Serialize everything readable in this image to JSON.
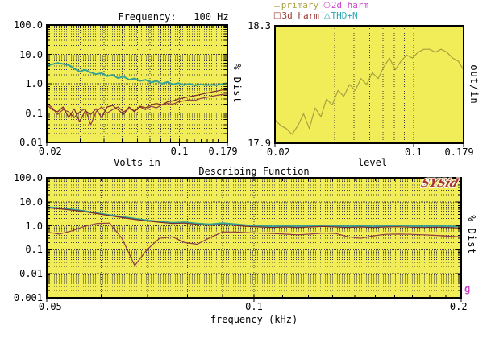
{
  "colors": {
    "plot_bg": "#f1ed58",
    "grid": "#3d3d3d",
    "frame": "#000000",
    "text": "#000000",
    "logo": "#a83232",
    "g_label": "#cc44cc"
  },
  "legend": {
    "items": [
      {
        "marker": "⊥",
        "label": "primary",
        "color": "#a8a040"
      },
      {
        "marker": "○",
        "label": "2d harm",
        "color": "#cc44cc"
      },
      {
        "marker": "□",
        "label": "3d harm",
        "color": "#993333"
      },
      {
        "marker": "△",
        "label": "THD+N",
        "color": "#2aa8b8"
      }
    ]
  },
  "branding": {
    "logo": "SYSid",
    "g_label": "g"
  },
  "chart_data": [
    {
      "id": "distortion-vs-level-at-100hz",
      "type": "line",
      "title": "Frequency:   100 Hz",
      "xlabel": "Volts in",
      "right_ylabel": "% Dist",
      "x_scale": "log",
      "y_scale": "log",
      "xlim": [
        0.02,
        0.179
      ],
      "ylim": [
        0.01,
        100
      ],
      "x_ticks": [
        {
          "v": 0.02,
          "label": "0.02"
        },
        {
          "v": 0.1,
          "label": "0.1"
        },
        {
          "v": 0.179,
          "label": "0.179"
        }
      ],
      "y_ticks": [
        {
          "v": 100,
          "label": "100.0"
        },
        {
          "v": 10,
          "label": "10.0"
        },
        {
          "v": 1,
          "label": "1.0"
        },
        {
          "v": 0.1,
          "label": "0.1"
        },
        {
          "v": 0.01,
          "label": "0.01"
        }
      ],
      "grid_x": [
        0.03,
        0.04,
        0.05,
        0.06,
        0.07,
        0.08,
        0.09,
        0.1
      ],
      "tick_minor_x": [
        0.03,
        0.04,
        0.05,
        0.06,
        0.07,
        0.08,
        0.09,
        0.1,
        0.11,
        0.12,
        0.13,
        0.14,
        0.15,
        0.16,
        0.17
      ],
      "x": [
        0.02,
        0.0214,
        0.0228,
        0.0244,
        0.0261,
        0.0279,
        0.0298,
        0.0319,
        0.0341,
        0.0364,
        0.0389,
        0.0416,
        0.0445,
        0.0475,
        0.0508,
        0.0543,
        0.058,
        0.062,
        0.0663,
        0.0708,
        0.0757,
        0.0809,
        0.0865,
        0.0924,
        0.0988,
        0.1056,
        0.1129,
        0.1206,
        0.1289,
        0.1378,
        0.1473,
        0.1574,
        0.1683,
        0.179
      ],
      "series": [
        {
          "name": "THD+N",
          "color": "#36a295",
          "width": 2,
          "y": [
            4.0,
            4.6,
            5.1,
            4.7,
            4.3,
            3.3,
            2.6,
            3.0,
            2.4,
            2.1,
            2.3,
            1.8,
            2.0,
            1.55,
            1.75,
            1.35,
            1.5,
            1.25,
            1.35,
            1.1,
            1.25,
            1.0,
            1.15,
            0.95,
            1.05,
            0.9,
            1.0,
            0.88,
            0.95,
            0.9,
            0.92,
            0.9,
            0.98,
            1.05
          ]
        },
        {
          "name": "2d harm",
          "color": "#8f3b46",
          "width": 1.2,
          "y": [
            0.22,
            0.15,
            0.09,
            0.13,
            0.11,
            0.07,
            0.11,
            0.14,
            0.04,
            0.11,
            0.16,
            0.1,
            0.13,
            0.16,
            0.11,
            0.14,
            0.12,
            0.16,
            0.13,
            0.17,
            0.15,
            0.19,
            0.21,
            0.2,
            0.24,
            0.26,
            0.28,
            0.27,
            0.31,
            0.34,
            0.37,
            0.4,
            0.43,
            0.45
          ]
        },
        {
          "name": "3d harm",
          "color": "#7d2b2b",
          "width": 1.2,
          "y": [
            0.19,
            0.13,
            0.11,
            0.16,
            0.07,
            0.14,
            0.05,
            0.12,
            0.09,
            0.14,
            0.07,
            0.16,
            0.18,
            0.13,
            0.09,
            0.16,
            0.11,
            0.17,
            0.15,
            0.19,
            0.21,
            0.19,
            0.24,
            0.26,
            0.3,
            0.33,
            0.36,
            0.39,
            0.43,
            0.47,
            0.52,
            0.56,
            0.61,
            0.65
          ]
        }
      ]
    },
    {
      "id": "gain-vs-level",
      "type": "line",
      "title": "",
      "xlabel": "level",
      "right_ylabel": "out/in",
      "x_scale": "log",
      "y_scale": "linear",
      "xlim": [
        0.02,
        0.179
      ],
      "ylim": [
        17.9,
        18.3
      ],
      "x_ticks": [
        {
          "v": 0.02,
          "label": "0.02"
        },
        {
          "v": 0.1,
          "label": "0.1"
        },
        {
          "v": 0.179,
          "label": "0.179"
        }
      ],
      "y_ticks": [
        {
          "v": 18.3,
          "label": "18.3"
        },
        {
          "v": 17.9,
          "label": "17.9"
        }
      ],
      "grid_x": [
        0.03,
        0.04,
        0.05,
        0.06,
        0.07,
        0.08,
        0.09,
        0.1
      ],
      "tick_minor_x": [],
      "x": [
        0.02,
        0.0214,
        0.0228,
        0.0244,
        0.0261,
        0.0279,
        0.0298,
        0.0319,
        0.0341,
        0.0364,
        0.0389,
        0.0416,
        0.0445,
        0.0475,
        0.0508,
        0.0543,
        0.058,
        0.062,
        0.0663,
        0.0708,
        0.0757,
        0.0809,
        0.0865,
        0.0924,
        0.0988,
        0.1056,
        0.1129,
        0.1206,
        0.1289,
        0.1378,
        0.1473,
        0.1574,
        0.1683,
        0.179
      ],
      "series": [
        {
          "name": "primary",
          "color": "#a8a040",
          "width": 1.2,
          "y": [
            17.98,
            17.96,
            17.95,
            17.93,
            17.96,
            18.0,
            17.95,
            18.02,
            17.99,
            18.05,
            18.03,
            18.08,
            18.06,
            18.1,
            18.08,
            18.12,
            18.1,
            18.14,
            18.12,
            18.16,
            18.19,
            18.15,
            18.18,
            18.2,
            18.19,
            18.21,
            18.22,
            18.22,
            18.21,
            18.22,
            18.21,
            18.19,
            18.18,
            18.15
          ]
        }
      ]
    },
    {
      "id": "describing-function",
      "type": "line",
      "title": "Describing Function",
      "xlabel": "frequency (kHz)",
      "right_ylabel": "% Dist",
      "x_scale": "log",
      "y_scale": "log",
      "xlim": [
        0.05,
        0.2
      ],
      "ylim": [
        0.001,
        100
      ],
      "x_ticks": [
        {
          "v": 0.05,
          "label": "0.05"
        },
        {
          "v": 0.1,
          "label": "0.1"
        },
        {
          "v": 0.2,
          "label": "0.2"
        }
      ],
      "y_ticks": [
        {
          "v": 100,
          "label": "100.0"
        },
        {
          "v": 10,
          "label": "10.0"
        },
        {
          "v": 1,
          "label": "1.0"
        },
        {
          "v": 0.1,
          "label": "0.1"
        },
        {
          "v": 0.01,
          "label": "0.01"
        },
        {
          "v": 0.001,
          "label": "0.001"
        }
      ],
      "grid_x": [
        0.06,
        0.07,
        0.08,
        0.09,
        0.1
      ],
      "tick_minor_x": [
        0.06,
        0.07,
        0.08,
        0.09,
        0.1,
        0.11,
        0.12,
        0.13,
        0.14,
        0.15,
        0.16,
        0.17,
        0.18,
        0.19
      ],
      "x": [
        0.05,
        0.0521,
        0.0544,
        0.0567,
        0.0591,
        0.0617,
        0.0643,
        0.0671,
        0.0699,
        0.0729,
        0.0761,
        0.0793,
        0.0827,
        0.0863,
        0.09,
        0.0938,
        0.0978,
        0.102,
        0.1064,
        0.111,
        0.1157,
        0.1207,
        0.1259,
        0.1313,
        0.1369,
        0.1428,
        0.1489,
        0.1553,
        0.162,
        0.1689,
        0.1762,
        0.1837,
        0.1916,
        0.2
      ],
      "series": [
        {
          "name": "THD+N",
          "color": "#36a295",
          "width": 2,
          "y": [
            6.0,
            5.4,
            4.8,
            4.1,
            3.4,
            2.8,
            2.35,
            2.0,
            1.7,
            1.5,
            1.35,
            1.42,
            1.25,
            1.15,
            1.3,
            1.18,
            1.05,
            1.0,
            0.95,
            1.0,
            0.95,
            1.0,
            1.05,
            1.0,
            0.95,
            1.0,
            0.95,
            1.0,
            1.05,
            1.0,
            0.95,
            1.0,
            0.95,
            0.95
          ]
        },
        {
          "name": "3d harm",
          "color": "#7d2b2b",
          "width": 1.2,
          "y": [
            5.7,
            5.1,
            4.5,
            3.9,
            3.2,
            2.65,
            2.2,
            1.85,
            1.6,
            1.4,
            1.25,
            1.3,
            1.15,
            1.05,
            1.15,
            1.05,
            0.95,
            0.9,
            0.85,
            0.9,
            0.85,
            0.9,
            0.95,
            0.9,
            0.85,
            0.9,
            0.85,
            0.9,
            0.92,
            0.88,
            0.85,
            0.88,
            0.85,
            0.8
          ]
        },
        {
          "name": "2d harm",
          "color": "#8f3b46",
          "width": 1.2,
          "y": [
            0.55,
            0.45,
            0.62,
            0.95,
            1.25,
            1.3,
            0.3,
            0.022,
            0.1,
            0.3,
            0.35,
            0.2,
            0.17,
            0.32,
            0.55,
            0.55,
            0.52,
            0.5,
            0.48,
            0.45,
            0.42,
            0.45,
            0.5,
            0.48,
            0.35,
            0.3,
            0.38,
            0.44,
            0.45,
            0.44,
            0.42,
            0.4,
            0.37,
            0.35
          ]
        }
      ]
    }
  ]
}
